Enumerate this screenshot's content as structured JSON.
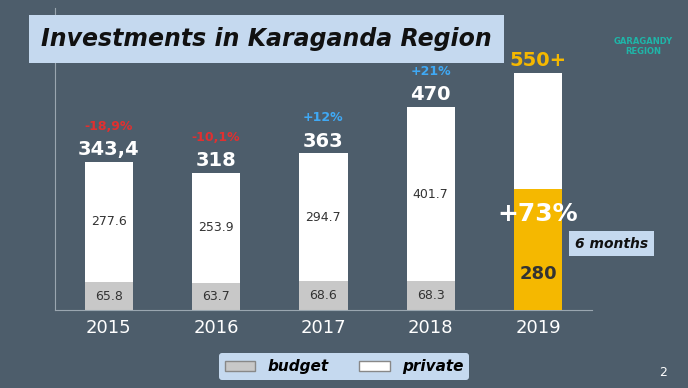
{
  "chart_data": {
    "type": "bar",
    "title": "Investments in Karaganda Region",
    "categories": [
      "2015",
      "2016",
      "2017",
      "2018",
      "2019"
    ],
    "stacked": true,
    "data_labels": true,
    "tick_labels": "x",
    "legend": "lower center",
    "ylim": [
      0,
      700
    ],
    "yticks": [],
    "series": [
      {
        "name": "budget",
        "color": "#c8c8c8",
        "values": [
          65.8,
          63.7,
          68.6,
          68.3,
          null
        ]
      },
      {
        "name": "private",
        "color": "#ffffff",
        "values": [
          277.6,
          253.9,
          294.7,
          401.7,
          null
        ]
      }
    ],
    "totals": {
      "color": "#ffffff",
      "values": [
        343.4,
        318,
        363,
        470,
        550
      ],
      "value_labels": [
        "343,4",
        "318",
        "363",
        "470",
        "550+"
      ]
    },
    "changes": {
      "values": [
        -18.9,
        -10.1,
        12,
        21,
        null
      ],
      "labels": [
        "-18,9%",
        "-10,1%",
        "+12%",
        "+21%",
        null
      ]
    },
    "partial": {
      "values": [
        null,
        null,
        null,
        null,
        280
      ],
      "color": "#f5b800",
      "label": "6 months",
      "annotation": "+73%"
    }
  },
  "logo": "GARAGANDY REGION",
  "page": "2"
}
